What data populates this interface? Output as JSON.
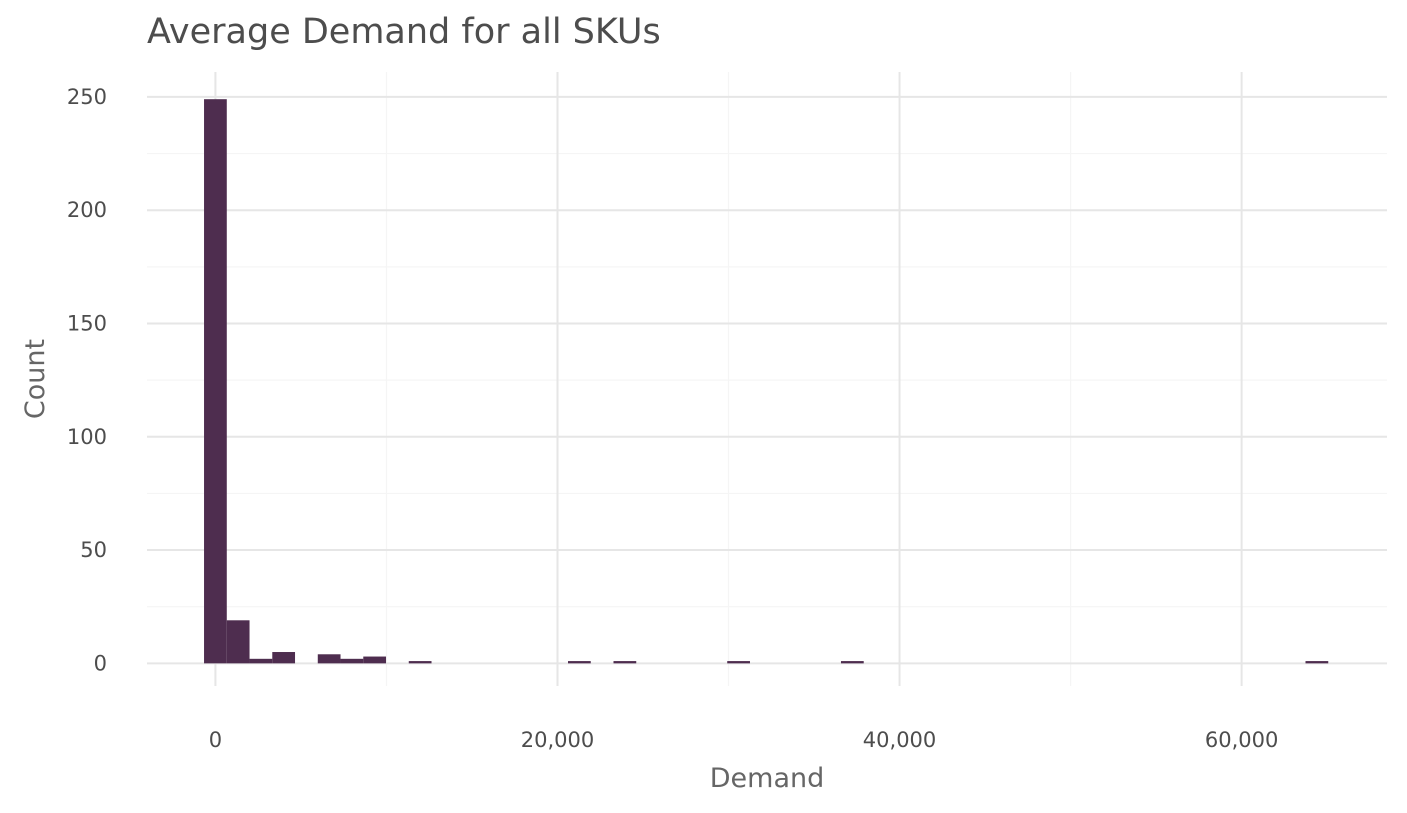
{
  "chart_data": {
    "type": "bar",
    "title": "Average Demand for all SKUs",
    "xlabel": "Demand",
    "ylabel": "Count",
    "xlim": [
      -4000,
      68500
    ],
    "ylim": [
      -10,
      261
    ],
    "bin_width": 1330,
    "bins": [
      {
        "x": 0,
        "count": 249
      },
      {
        "x": 1330,
        "count": 19
      },
      {
        "x": 2660,
        "count": 2
      },
      {
        "x": 3990,
        "count": 5
      },
      {
        "x": 5320,
        "count": 0
      },
      {
        "x": 6650,
        "count": 4
      },
      {
        "x": 7980,
        "count": 2
      },
      {
        "x": 9310,
        "count": 3
      },
      {
        "x": 11970,
        "count": 1
      },
      {
        "x": 21280,
        "count": 1
      },
      {
        "x": 23940,
        "count": 1
      },
      {
        "x": 30590,
        "count": 1
      },
      {
        "x": 37240,
        "count": 1
      },
      {
        "x": 64400,
        "count": 1
      }
    ],
    "x_ticks": [
      0,
      20000,
      40000,
      60000
    ],
    "x_tick_labels": [
      "0",
      "20,000",
      "40,000",
      "60,000"
    ],
    "x_minor_ticks": [
      10000,
      30000,
      50000
    ],
    "y_ticks": [
      0,
      50,
      100,
      150,
      200,
      250
    ],
    "y_tick_labels": [
      "0",
      "50",
      "100",
      "150",
      "200",
      "250"
    ],
    "y_minor_ticks": [
      25,
      75,
      125,
      175,
      225
    ],
    "grid": true,
    "bar_color": "#4e2d4f",
    "grid_color": "#e6e6e6",
    "minor_grid_color": "#f5f5f5",
    "background": "#ffffff"
  }
}
